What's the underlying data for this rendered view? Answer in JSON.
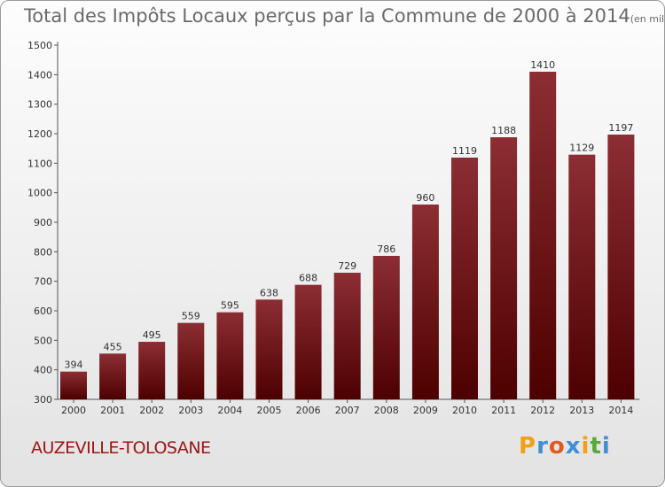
{
  "title": "Total des Impôts Locaux perçus par la Commune de 2000 à 2014",
  "unit": "(en milliers d'€)",
  "commune": "AUZEVILLE-TOLOSANE",
  "brand": {
    "letters": [
      "P",
      "r",
      "o",
      "x",
      "i",
      "t",
      "i"
    ],
    "colors": [
      "#f0a019",
      "#3f8fd6",
      "#e05a22",
      "#3f8fd6",
      "#f0a019",
      "#5aa83a",
      "#3f8fd6"
    ]
  },
  "colors": {
    "bar_top": "#8c2e34",
    "bar_bottom": "#4d0000",
    "axis": "#555555",
    "text": "#333333"
  },
  "chart_data": {
    "type": "bar",
    "title": "Total des Impôts Locaux perçus par la Commune de 2000 à 2014",
    "xlabel": "",
    "ylabel": "",
    "categories": [
      "2000",
      "2001",
      "2002",
      "2003",
      "2004",
      "2005",
      "2006",
      "2007",
      "2008",
      "2009",
      "2010",
      "2011",
      "2012",
      "2013",
      "2014"
    ],
    "values": [
      394,
      455,
      495,
      559,
      595,
      638,
      688,
      729,
      786,
      960,
      1119,
      1188,
      1410,
      1129,
      1197
    ],
    "ylim": [
      300,
      1500
    ],
    "yticks": [
      300,
      400,
      500,
      600,
      700,
      800,
      900,
      1000,
      1100,
      1200,
      1300,
      1400,
      1500
    ],
    "grid": false,
    "legend": "none"
  }
}
